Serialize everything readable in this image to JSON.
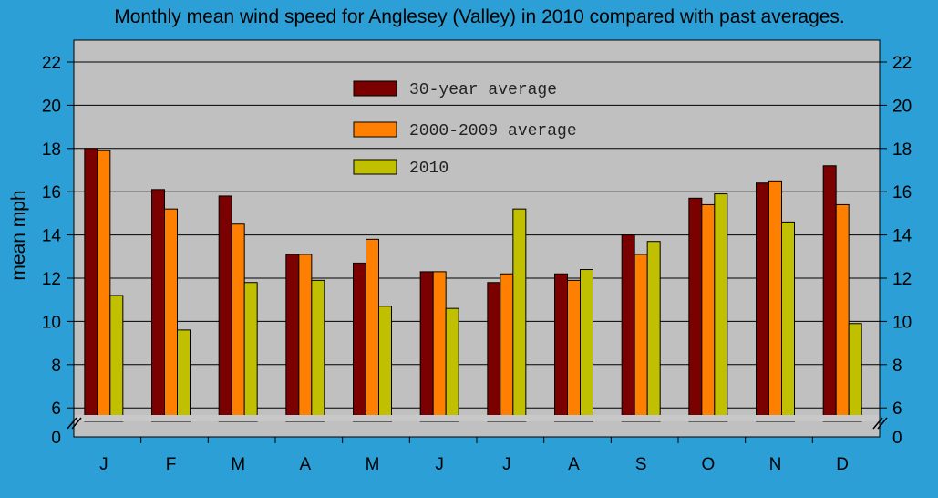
{
  "chart_data": {
    "type": "bar",
    "title": "Monthly mean wind speed for Anglesey (Valley) in 2010 compared with past averages.",
    "ylabel": "mean mph",
    "xlabel": "",
    "categories": [
      "J",
      "F",
      "M",
      "A",
      "M",
      "J",
      "J",
      "A",
      "S",
      "O",
      "N",
      "D"
    ],
    "series": [
      {
        "name": "30-year average",
        "color": "#7b0000",
        "values": [
          18.0,
          16.1,
          15.8,
          13.1,
          12.7,
          12.3,
          11.8,
          12.2,
          14.0,
          15.7,
          16.4,
          17.2
        ]
      },
      {
        "name": "2000-2009 average",
        "color": "#ff8000",
        "values": [
          17.9,
          15.2,
          14.5,
          13.1,
          13.8,
          12.3,
          12.2,
          11.9,
          13.1,
          15.4,
          16.5,
          15.4
        ]
      },
      {
        "name": "2010",
        "color": "#c0c000",
        "values": [
          11.2,
          9.6,
          11.8,
          11.9,
          10.7,
          10.6,
          15.2,
          12.4,
          13.7,
          15.9,
          14.6,
          9.9
        ]
      }
    ],
    "ylim": [
      5.5,
      23
    ],
    "yticks": [
      "6",
      "8",
      "10",
      "12",
      "14",
      "16",
      "18",
      "20",
      "22"
    ],
    "ytick_values": [
      6,
      8,
      10,
      12,
      14,
      16,
      18,
      20,
      22
    ],
    "y_zero_label": "0",
    "axis_break": true,
    "grid": true,
    "legend_position": "top-center",
    "colors": {
      "background": "#2b9fd6",
      "plot_area": "#c0c0c0",
      "break_band": "#c8c8c8"
    }
  }
}
